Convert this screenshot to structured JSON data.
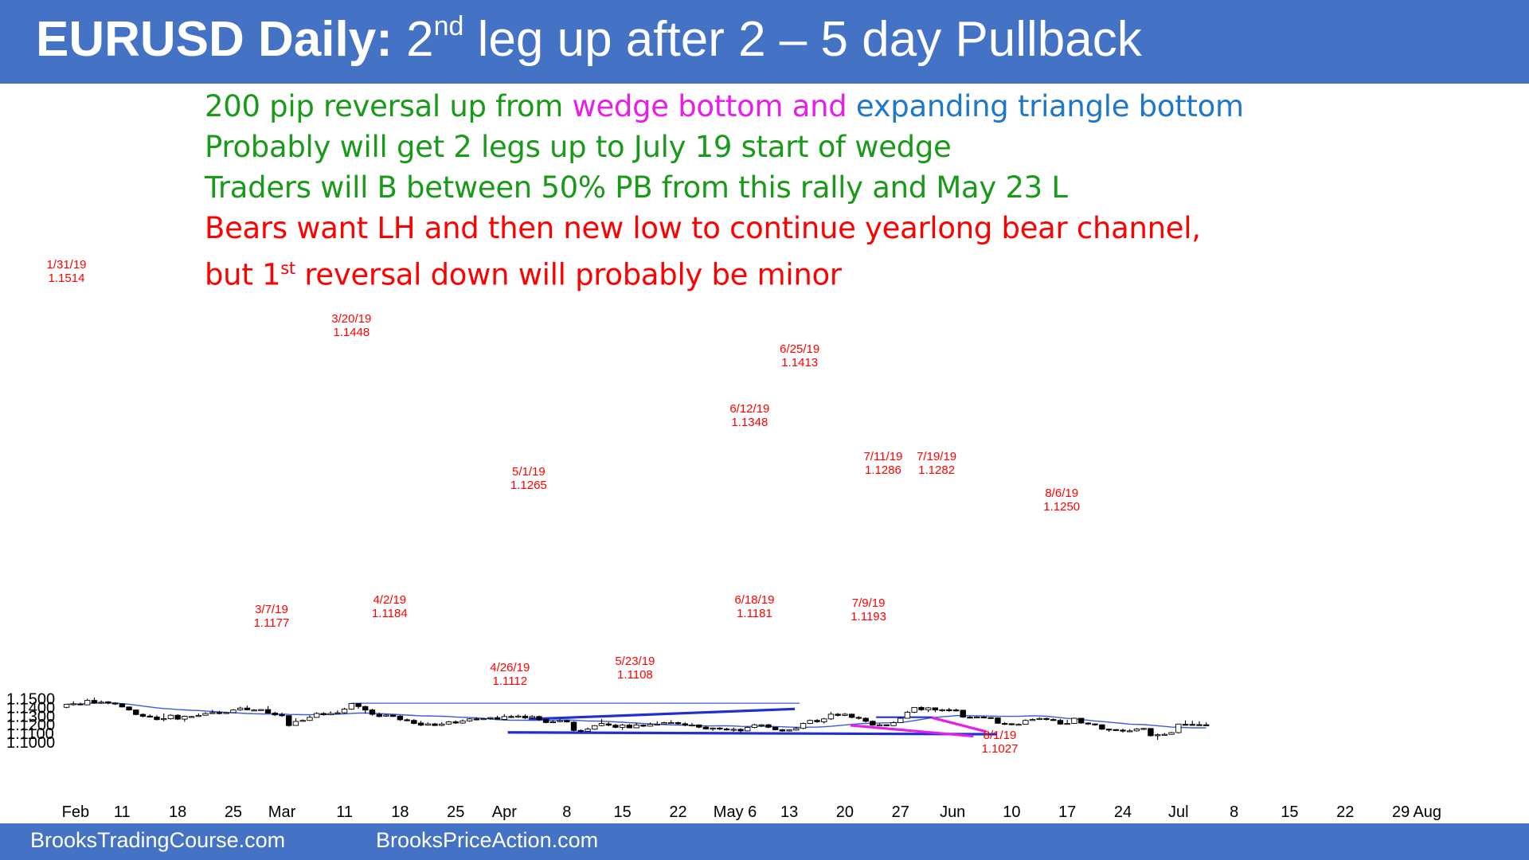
{
  "header": {
    "title_bold": "EURUSD Daily:",
    "title_pre": "2",
    "title_sup": "nd",
    "title_rest": "leg up after 2 – 5 day Pullback"
  },
  "notes": {
    "line1_a": "200 pip reversal up from ",
    "line1_b": "wedge bottom and ",
    "line1_c": "expanding triangle bottom",
    "line2": "Probably will get 2 legs up to July 19 start of wedge",
    "line3": "Traders will B between 50% PB from this rally and May 23 L",
    "line4": "Bears want LH and then new low to continue yearlong bear channel,",
    "line5_a": "but 1",
    "line5_sup": "st",
    "line5_b": " reversal down will probably be minor"
  },
  "footer": {
    "left": "BrooksTradingCourse.com",
    "right": "BrooksPriceAction.com"
  },
  "colors": {
    "title_bar": "#4472c4",
    "up_candle": "#ffffff",
    "down_candle": "#000000",
    "moving_average": "#3b5bdb",
    "trendline": "#1f2fd0",
    "wedge": "#e81ee8",
    "annotation": "#ff0000"
  },
  "chart_data": {
    "type": "candlestick",
    "ylim": [
      1.0965,
      1.1525
    ],
    "y_ticks": [
      "1.1000",
      "1.1100",
      "1.1200",
      "1.1300",
      "1.1400",
      "1.1500"
    ],
    "x_ticks": [
      "Feb",
      "11",
      "18",
      "25",
      "Mar",
      "11",
      "18",
      "25",
      "Apr",
      "8",
      "15",
      "22",
      "May 6",
      "13",
      "20",
      "27",
      "Jun",
      "10",
      "17",
      "24",
      "Jul",
      "8",
      "15",
      "22",
      "29",
      "Aug"
    ],
    "annotations": [
      {
        "date": "1/31/19",
        "price": "1.1514"
      },
      {
        "date": "3/20/19",
        "price": "1.1448"
      },
      {
        "date": "3/7/19",
        "price": "1.1177"
      },
      {
        "date": "4/2/19",
        "price": "1.1184"
      },
      {
        "date": "5/1/19",
        "price": "1.1265"
      },
      {
        "date": "4/26/19",
        "price": "1.1112"
      },
      {
        "date": "5/23/19",
        "price": "1.1108"
      },
      {
        "date": "6/12/19",
        "price": "1.1348"
      },
      {
        "date": "6/25/19",
        "price": "1.1413"
      },
      {
        "date": "6/18/19",
        "price": "1.1181"
      },
      {
        "date": "7/11/19",
        "price": "1.1286"
      },
      {
        "date": "7/19/19",
        "price": "1.1282"
      },
      {
        "date": "7/9/19",
        "price": "1.1193"
      },
      {
        "date": "8/6/19",
        "price": "1.1250"
      },
      {
        "date": "8/1/19",
        "price": "1.1027"
      }
    ],
    "candles": [
      [
        1.14,
        1.1436,
        1.144,
        1.139
      ],
      [
        1.1433,
        1.1442,
        1.147,
        1.142
      ],
      [
        1.144,
        1.1432,
        1.1455,
        1.1425
      ],
      [
        1.143,
        1.148,
        1.15,
        1.1425
      ],
      [
        1.148,
        1.145,
        1.1514,
        1.144
      ],
      [
        1.145,
        1.146,
        1.148,
        1.144
      ],
      [
        1.1465,
        1.145,
        1.147,
        1.1435
      ],
      [
        1.145,
        1.144,
        1.146,
        1.1428
      ],
      [
        1.144,
        1.1405,
        1.1447,
        1.14
      ],
      [
        1.1405,
        1.137,
        1.141,
        1.1362
      ],
      [
        1.137,
        1.1318,
        1.1375,
        1.131
      ],
      [
        1.132,
        1.1298,
        1.133,
        1.1285
      ],
      [
        1.13,
        1.129,
        1.132,
        1.1285
      ],
      [
        1.129,
        1.126,
        1.131,
        1.125
      ],
      [
        1.1262,
        1.127,
        1.133,
        1.124
      ],
      [
        1.127,
        1.131,
        1.132,
        1.126
      ],
      [
        1.131,
        1.1265,
        1.132,
        1.1255
      ],
      [
        1.1265,
        1.1298,
        1.1305,
        1.1235
      ],
      [
        1.1295,
        1.1295,
        1.1302,
        1.1286
      ],
      [
        1.1296,
        1.1308,
        1.133,
        1.1289
      ],
      [
        1.131,
        1.133,
        1.1345,
        1.1305
      ],
      [
        1.133,
        1.134,
        1.1372,
        1.1325
      ],
      [
        1.134,
        1.1335,
        1.136,
        1.132
      ],
      [
        1.1335,
        1.134,
        1.135,
        1.1328
      ],
      [
        1.134,
        1.137,
        1.138,
        1.1338
      ],
      [
        1.1372,
        1.1392,
        1.1408,
        1.1362
      ],
      [
        1.1392,
        1.1372,
        1.142,
        1.1365
      ],
      [
        1.137,
        1.137,
        1.138,
        1.136
      ],
      [
        1.137,
        1.1375,
        1.138,
        1.1362
      ],
      [
        1.1375,
        1.1335,
        1.1415,
        1.133
      ],
      [
        1.1335,
        1.1315,
        1.135,
        1.13
      ],
      [
        1.1315,
        1.1305,
        1.134,
        1.129
      ],
      [
        1.1305,
        1.119,
        1.131,
        1.1178
      ],
      [
        1.1192,
        1.1238,
        1.1275,
        1.1188
      ],
      [
        1.124,
        1.125,
        1.1262,
        1.124
      ],
      [
        1.125,
        1.1285,
        1.1308,
        1.1245
      ],
      [
        1.1285,
        1.133,
        1.1345,
        1.128
      ],
      [
        1.133,
        1.1315,
        1.1345,
        1.1305
      ],
      [
        1.1315,
        1.133,
        1.1355,
        1.131
      ],
      [
        1.133,
        1.1338,
        1.1365,
        1.1322
      ],
      [
        1.1338,
        1.138,
        1.1395,
        1.133
      ],
      [
        1.138,
        1.1445,
        1.1448,
        1.1372
      ],
      [
        1.1445,
        1.141,
        1.143,
        1.1385
      ],
      [
        1.141,
        1.137,
        1.142,
        1.133
      ],
      [
        1.137,
        1.132,
        1.1385,
        1.1305
      ],
      [
        1.132,
        1.1295,
        1.134,
        1.1285
      ],
      [
        1.13,
        1.1312,
        1.1322,
        1.129
      ],
      [
        1.1312,
        1.1296,
        1.1318,
        1.129
      ],
      [
        1.13,
        1.1258,
        1.131,
        1.1245
      ],
      [
        1.1258,
        1.125,
        1.1272,
        1.124
      ],
      [
        1.125,
        1.1215,
        1.1265,
        1.1205
      ],
      [
        1.122,
        1.1195,
        1.1245,
        1.1185
      ],
      [
        1.1195,
        1.121,
        1.1228,
        1.119
      ],
      [
        1.121,
        1.1192,
        1.1222,
        1.1186
      ],
      [
        1.1192,
        1.1208,
        1.123,
        1.1184
      ],
      [
        1.1208,
        1.1234,
        1.1245,
        1.12
      ],
      [
        1.1234,
        1.122,
        1.125,
        1.121
      ],
      [
        1.122,
        1.1245,
        1.1262,
        1.1212
      ],
      [
        1.1245,
        1.1268,
        1.1275,
        1.1235
      ],
      [
        1.1268,
        1.1262,
        1.1285,
        1.125
      ],
      [
        1.1265,
        1.127,
        1.1278,
        1.1255
      ],
      [
        1.127,
        1.1282,
        1.129,
        1.126
      ],
      [
        1.1282,
        1.1265,
        1.1305,
        1.126
      ],
      [
        1.1262,
        1.1295,
        1.1323,
        1.125
      ],
      [
        1.1295,
        1.129,
        1.1315,
        1.128
      ],
      [
        1.129,
        1.13,
        1.1318,
        1.128
      ],
      [
        1.13,
        1.128,
        1.1322,
        1.1265
      ],
      [
        1.128,
        1.1295,
        1.131,
        1.127
      ],
      [
        1.1295,
        1.126,
        1.1305,
        1.1245
      ],
      [
        1.126,
        1.1225,
        1.127,
        1.1218
      ],
      [
        1.123,
        1.1235,
        1.125,
        1.1225
      ],
      [
        1.1235,
        1.1248,
        1.1265,
        1.123
      ],
      [
        1.1248,
        1.1232,
        1.126,
        1.1225
      ],
      [
        1.123,
        1.1135,
        1.124,
        1.1125
      ],
      [
        1.1135,
        1.1125,
        1.1148,
        1.1112
      ],
      [
        1.1125,
        1.115,
        1.1168,
        1.112
      ],
      [
        1.115,
        1.119,
        1.1196,
        1.1142
      ],
      [
        1.119,
        1.1215,
        1.1265,
        1.1182
      ],
      [
        1.121,
        1.1195,
        1.123,
        1.1182
      ],
      [
        1.1195,
        1.117,
        1.121,
        1.116
      ],
      [
        1.117,
        1.1196,
        1.121,
        1.114
      ],
      [
        1.1196,
        1.1165,
        1.121,
        1.116
      ],
      [
        1.1165,
        1.1198,
        1.1222,
        1.116
      ],
      [
        1.1196,
        1.1184,
        1.1205,
        1.1175
      ],
      [
        1.1184,
        1.1205,
        1.1225,
        1.118
      ],
      [
        1.1205,
        1.1208,
        1.124,
        1.1198
      ],
      [
        1.121,
        1.1225,
        1.1235,
        1.1205
      ],
      [
        1.1225,
        1.1225,
        1.1252,
        1.1215
      ],
      [
        1.1225,
        1.1212,
        1.1235,
        1.12
      ],
      [
        1.1212,
        1.1196,
        1.123,
        1.1182
      ],
      [
        1.1196,
        1.1198,
        1.1222,
        1.118
      ],
      [
        1.1198,
        1.1172,
        1.1205,
        1.116
      ],
      [
        1.1172,
        1.1152,
        1.119,
        1.1145
      ],
      [
        1.1152,
        1.1162,
        1.117,
        1.113
      ],
      [
        1.1162,
        1.1152,
        1.1172,
        1.1138
      ],
      [
        1.1152,
        1.114,
        1.1165,
        1.1135
      ],
      [
        1.114,
        1.1148,
        1.1168,
        1.112
      ],
      [
        1.1148,
        1.113,
        1.116,
        1.1108
      ],
      [
        1.113,
        1.117,
        1.118,
        1.1125
      ],
      [
        1.117,
        1.12,
        1.121,
        1.116
      ],
      [
        1.12,
        1.12,
        1.1208,
        1.1175
      ],
      [
        1.12,
        1.1172,
        1.121,
        1.116
      ],
      [
        1.1172,
        1.1143,
        1.1175,
        1.1135
      ],
      [
        1.1143,
        1.1128,
        1.1152,
        1.112
      ],
      [
        1.1128,
        1.114,
        1.1148,
        1.1122
      ],
      [
        1.114,
        1.1158,
        1.1175,
        1.1132
      ],
      [
        1.1158,
        1.1215,
        1.1225,
        1.115
      ],
      [
        1.1215,
        1.125,
        1.126,
        1.1208
      ],
      [
        1.125,
        1.1235,
        1.1265,
        1.1222
      ],
      [
        1.1235,
        1.1268,
        1.1278,
        1.1215
      ],
      [
        1.1268,
        1.1322,
        1.1348,
        1.1255
      ],
      [
        1.1322,
        1.1308,
        1.1335,
        1.1295
      ],
      [
        1.1308,
        1.1322,
        1.1335,
        1.13
      ],
      [
        1.1322,
        1.1285,
        1.133,
        1.1275
      ],
      [
        1.1285,
        1.1275,
        1.13,
        1.126
      ],
      [
        1.1275,
        1.124,
        1.1285,
        1.1228
      ],
      [
        1.124,
        1.1195,
        1.125,
        1.119
      ],
      [
        1.1195,
        1.12,
        1.1215,
        1.1188
      ],
      [
        1.12,
        1.119,
        1.1205,
        1.1181
      ],
      [
        1.119,
        1.1225,
        1.124,
        1.1185
      ],
      [
        1.1225,
        1.1275,
        1.129,
        1.122
      ],
      [
        1.1275,
        1.1345,
        1.136,
        1.127
      ],
      [
        1.1345,
        1.14,
        1.1404,
        1.1335
      ],
      [
        1.14,
        1.1373,
        1.1413,
        1.136
      ],
      [
        1.1373,
        1.1395,
        1.1405,
        1.1345
      ],
      [
        1.1395,
        1.137,
        1.138,
        1.1345
      ],
      [
        1.137,
        1.1373,
        1.1385,
        1.135
      ],
      [
        1.1373,
        1.137,
        1.1395,
        1.135
      ],
      [
        1.137,
        1.1368,
        1.1385,
        1.1355
      ],
      [
        1.1368,
        1.1288,
        1.1372,
        1.128
      ],
      [
        1.1288,
        1.1285,
        1.1298,
        1.1275
      ],
      [
        1.1285,
        1.129,
        1.13,
        1.1278
      ],
      [
        1.129,
        1.1283,
        1.13,
        1.1275
      ],
      [
        1.1283,
        1.128,
        1.129,
        1.1268
      ],
      [
        1.128,
        1.1218,
        1.1285,
        1.121
      ],
      [
        1.1215,
        1.1212,
        1.123,
        1.1198
      ],
      [
        1.1212,
        1.1202,
        1.1218,
        1.1193
      ],
      [
        1.1202,
        1.1205,
        1.1216,
        1.1196
      ],
      [
        1.1205,
        1.125,
        1.1262,
        1.12
      ],
      [
        1.125,
        1.126,
        1.1272,
        1.1248
      ],
      [
        1.126,
        1.1272,
        1.1286,
        1.1255
      ],
      [
        1.1272,
        1.126,
        1.1282,
        1.125
      ],
      [
        1.126,
        1.125,
        1.1275,
        1.1245
      ],
      [
        1.125,
        1.1208,
        1.1268,
        1.12
      ],
      [
        1.1208,
        1.1215,
        1.1258,
        1.12
      ],
      [
        1.1215,
        1.1275,
        1.1282,
        1.121
      ],
      [
        1.1275,
        1.122,
        1.128,
        1.1212
      ],
      [
        1.122,
        1.121,
        1.1228,
        1.1198
      ],
      [
        1.121,
        1.12,
        1.1215,
        1.119
      ],
      [
        1.12,
        1.115,
        1.1205,
        1.114
      ],
      [
        1.115,
        1.1145,
        1.1155,
        1.112
      ],
      [
        1.1145,
        1.1138,
        1.115,
        1.1128
      ],
      [
        1.1138,
        1.113,
        1.1155,
        1.111
      ],
      [
        1.113,
        1.113,
        1.115,
        1.1115
      ],
      [
        1.113,
        1.115,
        1.1162,
        1.1122
      ],
      [
        1.115,
        1.1158,
        1.1165,
        1.114
      ],
      [
        1.1158,
        1.1075,
        1.116,
        1.1064
      ],
      [
        1.1075,
        1.1085,
        1.11,
        1.1027
      ],
      [
        1.1085,
        1.109,
        1.1105,
        1.1075
      ],
      [
        1.109,
        1.111,
        1.1118,
        1.1085
      ],
      [
        1.111,
        1.1208,
        1.1212,
        1.11
      ],
      [
        1.1205,
        1.1204,
        1.125,
        1.1198
      ],
      [
        1.1204,
        1.1202,
        1.1245,
        1.119
      ],
      [
        1.1202,
        1.12,
        1.124,
        1.1195
      ],
      [
        1.12,
        1.1195,
        1.1228,
        1.1188
      ]
    ]
  }
}
